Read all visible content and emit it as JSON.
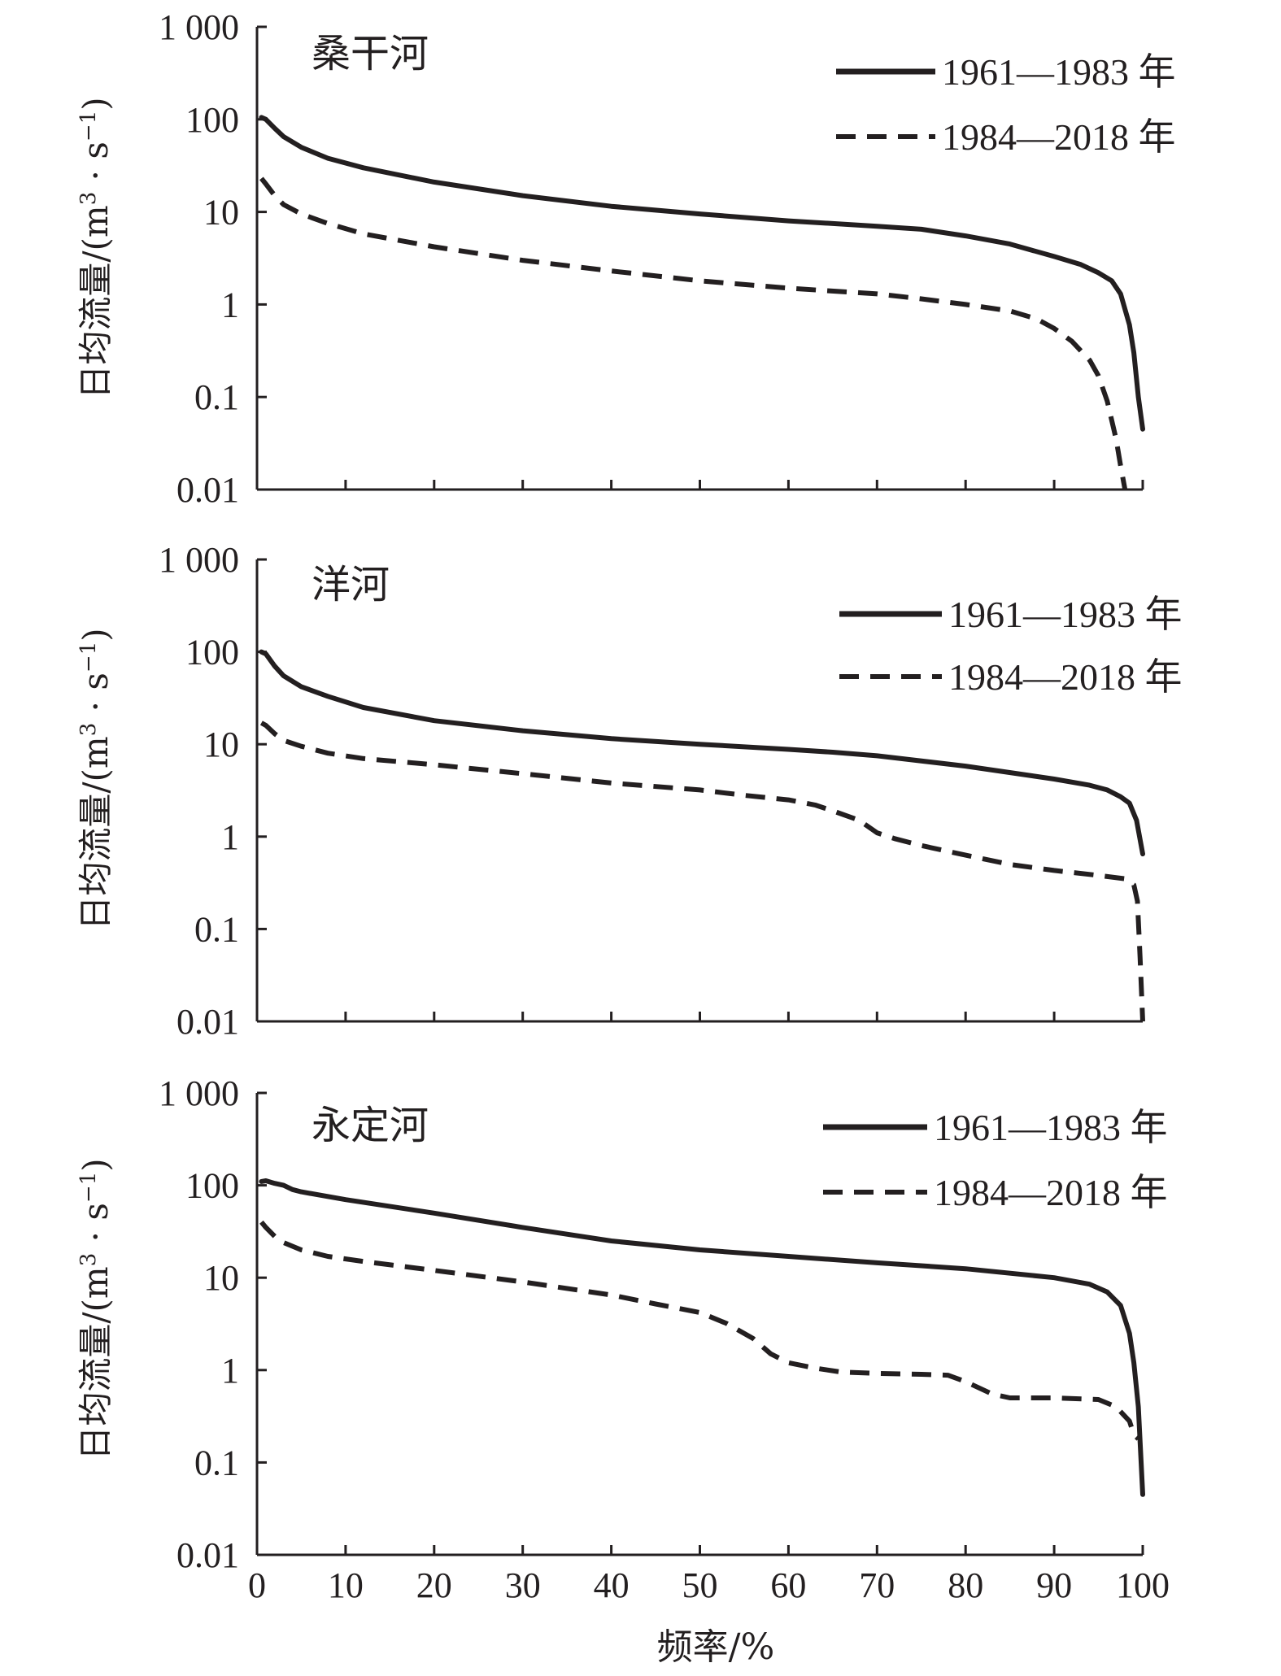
{
  "xlabel": "频率/%",
  "ylabel": "日均流量/(m",
  "ylabel_sup1": "3",
  "ylabel_mid": " · s",
  "ylabel_sup2": "−1",
  "ylabel_end": ")",
  "y_ticks": [
    "1 000",
    "100",
    "10",
    "1",
    "0.1",
    "0.01"
  ],
  "x_ticks": [
    "0",
    "10",
    "20",
    "30",
    "40",
    "50",
    "60",
    "70",
    "80",
    "90",
    "100"
  ],
  "colors": {
    "line": "#231f20",
    "background": "#ffffff"
  },
  "chart_data": [
    {
      "type": "line",
      "title": "桑干河",
      "xlabel": "",
      "ylabel": "日均流量/(m3 · s−1)",
      "yscale": "log",
      "xlim": [
        0,
        100
      ],
      "ylim": [
        0.01,
        1000
      ],
      "legend_position": "top-right",
      "series": [
        {
          "name": "1961—1983 年",
          "style": "solid",
          "x": [
            0.5,
            1,
            2,
            3,
            5,
            8,
            12,
            20,
            30,
            40,
            50,
            60,
            70,
            75,
            80,
            85,
            90,
            93,
            95,
            96.5,
            97.5,
            98.5,
            99,
            99.5,
            100
          ],
          "y": [
            105,
            100,
            80,
            65,
            50,
            38,
            30,
            21,
            15,
            11.5,
            9.5,
            8,
            7,
            6.5,
            5.5,
            4.5,
            3.3,
            2.7,
            2.2,
            1.8,
            1.3,
            0.6,
            0.3,
            0.1,
            0.045
          ]
        },
        {
          "name": "1984—2018 年",
          "style": "dashed",
          "x": [
            0.5,
            1,
            2,
            3,
            5,
            8,
            12,
            20,
            30,
            40,
            50,
            60,
            70,
            75,
            80,
            85,
            88,
            90,
            92,
            94,
            95,
            96,
            97,
            97.5,
            98
          ],
          "y": [
            23,
            20,
            15,
            12,
            9.5,
            7.5,
            5.8,
            4.2,
            3,
            2.3,
            1.8,
            1.5,
            1.3,
            1.15,
            1,
            0.85,
            0.7,
            0.55,
            0.4,
            0.25,
            0.17,
            0.09,
            0.035,
            0.018,
            0.01
          ]
        }
      ]
    },
    {
      "type": "line",
      "title": "洋河",
      "xlabel": "",
      "ylabel": "日均流量/(m3 · s−1)",
      "yscale": "log",
      "xlim": [
        0,
        100
      ],
      "ylim": [
        0.01,
        1000
      ],
      "legend_position": "top-right",
      "series": [
        {
          "name": "1961—1983 年",
          "style": "solid",
          "x": [
            0.5,
            1,
            2,
            3,
            5,
            8,
            12,
            20,
            30,
            40,
            50,
            60,
            65,
            70,
            80,
            90,
            94,
            96,
            97.5,
            98.5,
            99.3,
            100
          ],
          "y": [
            100,
            95,
            70,
            55,
            42,
            33,
            25,
            18,
            14,
            11.5,
            10,
            8.8,
            8.2,
            7.5,
            5.8,
            4.2,
            3.6,
            3.2,
            2.7,
            2.3,
            1.5,
            0.65
          ]
        },
        {
          "name": "1984—2018 年",
          "style": "dashed",
          "x": [
            0.5,
            1,
            2,
            3,
            5,
            8,
            12,
            20,
            30,
            40,
            50,
            55,
            60,
            63,
            65,
            68,
            70,
            72,
            75,
            80,
            85,
            90,
            95,
            98,
            99,
            99.4,
            99.7,
            100
          ],
          "y": [
            17,
            16,
            13,
            11,
            9.5,
            8,
            7,
            6,
            4.8,
            3.8,
            3.2,
            2.8,
            2.5,
            2.2,
            1.9,
            1.5,
            1.1,
            0.95,
            0.8,
            0.63,
            0.5,
            0.43,
            0.38,
            0.35,
            0.3,
            0.2,
            0.05,
            0.01
          ]
        }
      ]
    },
    {
      "type": "line",
      "title": "永定河",
      "xlabel": "频率/%",
      "ylabel": "日均流量/(m3 · s−1)",
      "yscale": "log",
      "xlim": [
        0,
        100
      ],
      "ylim": [
        0.01,
        1000
      ],
      "legend_position": "top-right",
      "series": [
        {
          "name": "1961—1983 年",
          "style": "solid",
          "x": [
            0.5,
            1,
            2,
            3,
            4,
            5,
            10,
            20,
            30,
            40,
            50,
            60,
            70,
            80,
            90,
            94,
            96,
            97.5,
            98.5,
            99,
            99.5,
            100
          ],
          "y": [
            110,
            112,
            105,
            100,
            90,
            85,
            70,
            50,
            35,
            25,
            20,
            17,
            14.5,
            12.5,
            10,
            8.5,
            7,
            5,
            2.5,
            1.2,
            0.4,
            0.045
          ]
        },
        {
          "name": "1984—2018 年",
          "style": "dashed",
          "x": [
            0.5,
            1,
            2,
            3,
            5,
            8,
            12,
            20,
            30,
            40,
            45,
            50,
            53,
            56,
            58,
            60,
            63,
            66,
            70,
            75,
            78,
            80,
            83,
            85,
            90,
            95,
            97,
            98.5,
            99,
            99.5
          ],
          "y": [
            40,
            35,
            28,
            24,
            20,
            17,
            15,
            12,
            9,
            6.5,
            5.2,
            4.2,
            3.2,
            2.2,
            1.5,
            1.2,
            1.05,
            0.95,
            0.92,
            0.9,
            0.88,
            0.75,
            0.55,
            0.5,
            0.5,
            0.48,
            0.4,
            0.28,
            0.2,
            0.18
          ]
        }
      ]
    }
  ]
}
